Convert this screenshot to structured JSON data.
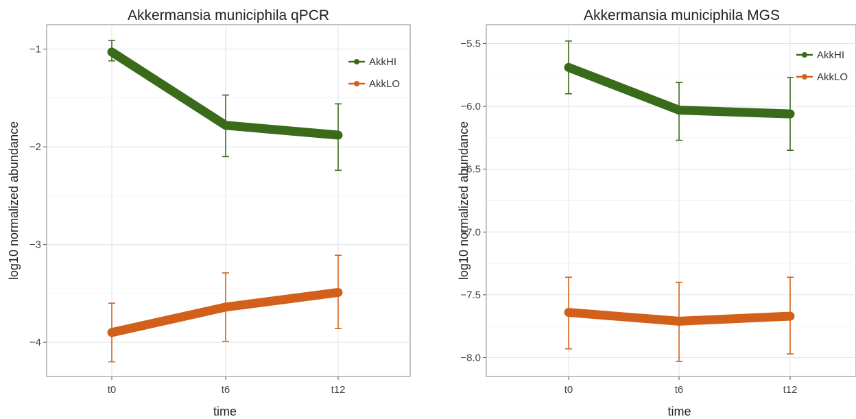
{
  "chart_data": [
    {
      "type": "line",
      "title": "Akkermansia municiphila qPCR",
      "xlabel": "time",
      "ylabel": "log10 normalized abundance",
      "categories": [
        "t0",
        "t6",
        "t12"
      ],
      "ylim": [
        -4.35,
        -0.75
      ],
      "yticks": [
        -1,
        -2,
        -3,
        -4
      ],
      "ytick_labels": [
        "−1",
        "−2",
        "−3",
        "−4"
      ],
      "grid": true,
      "legend_position": "top-right",
      "series": [
        {
          "name": "AkkHI",
          "color": "#3a6b1a",
          "values": [
            -1.03,
            -1.78,
            -1.88
          ],
          "err_low": [
            -1.12,
            -2.1,
            -2.24
          ],
          "err_high": [
            -0.91,
            -1.47,
            -1.56
          ]
        },
        {
          "name": "AkkLO",
          "color": "#d2601a",
          "values": [
            -3.9,
            -3.64,
            -3.49
          ],
          "err_low": [
            -4.2,
            -3.99,
            -3.86
          ],
          "err_high": [
            -3.6,
            -3.29,
            -3.11
          ]
        }
      ]
    },
    {
      "type": "line",
      "title": "Akkermansia municiphila MGS",
      "xlabel": "time",
      "ylabel": "log10 normalized abundance",
      "categories": [
        "t0",
        "t6",
        "t12"
      ],
      "ylim": [
        -8.15,
        -5.35
      ],
      "yticks": [
        -5.5,
        -6.0,
        -6.5,
        -7.0,
        -7.5,
        -8.0
      ],
      "ytick_labels": [
        "−5.5",
        "−6.0",
        "−6.5",
        "−7.0",
        "−7.5",
        "−8.0"
      ],
      "grid": true,
      "legend_position": "top-right",
      "series": [
        {
          "name": "AkkHI",
          "color": "#3a6b1a",
          "values": [
            -5.69,
            -6.03,
            -6.06
          ],
          "err_low": [
            -5.9,
            -6.27,
            -6.35
          ],
          "err_high": [
            -5.48,
            -5.81,
            -5.77
          ]
        },
        {
          "name": "AkkLO",
          "color": "#d2601a",
          "values": [
            -7.64,
            -7.71,
            -7.67
          ],
          "err_low": [
            -7.93,
            -8.03,
            -7.97
          ],
          "err_high": [
            -7.36,
            -7.4,
            -7.36
          ]
        }
      ]
    }
  ]
}
